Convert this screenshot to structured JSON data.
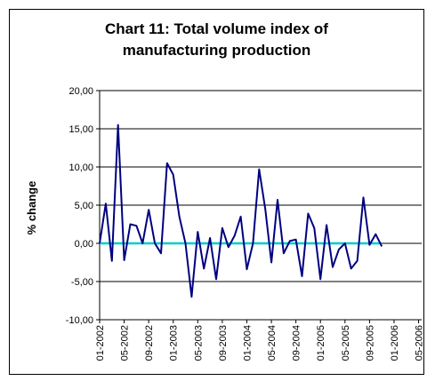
{
  "chart_data": {
    "type": "line",
    "title": "Chart 11: Total volume index of\nmanufacturing production",
    "xlabel": "",
    "ylabel": "% change",
    "ylim": [
      -10,
      20
    ],
    "y_ticks": [
      "20,00",
      "15,00",
      "10,00",
      "5,00",
      "0,00",
      "-5,00",
      "-10,00"
    ],
    "y_tick_values": [
      20,
      15,
      10,
      5,
      0,
      -5,
      -10
    ],
    "x_ticks": [
      "01-2002",
      "05-2002",
      "09-2002",
      "01-2003",
      "05-2003",
      "09-2003",
      "01-2004",
      "05-2004",
      "09-2004",
      "01-2005",
      "05-2005",
      "09-2005",
      "01-2006",
      "05-2006"
    ],
    "grid": "horizontal",
    "legend": "none",
    "series": [
      {
        "color": "#000080",
        "x": [
          "01-2002",
          "02-2002",
          "03-2002",
          "04-2002",
          "05-2002",
          "06-2002",
          "07-2002",
          "08-2002",
          "09-2002",
          "10-2002",
          "11-2002",
          "12-2002",
          "01-2003",
          "02-2003",
          "03-2003",
          "04-2003",
          "05-2003",
          "06-2003",
          "07-2003",
          "08-2003",
          "09-2003",
          "10-2003",
          "11-2003",
          "12-2003",
          "01-2004",
          "02-2004",
          "03-2004",
          "04-2004",
          "05-2004",
          "06-2004",
          "07-2004",
          "08-2004",
          "09-2004",
          "10-2004",
          "11-2004",
          "12-2004",
          "01-2005",
          "02-2005",
          "03-2005",
          "04-2005",
          "05-2005",
          "06-2005",
          "07-2005",
          "08-2005",
          "09-2005",
          "10-2005",
          "11-2005",
          "12-2005"
        ],
        "values": [
          0.0,
          5.2,
          -2.3,
          15.5,
          -2.2,
          2.5,
          2.3,
          0.0,
          4.4,
          0.0,
          -1.3,
          10.5,
          9.0,
          3.5,
          0.0,
          -7.0,
          1.5,
          -3.3,
          0.7,
          -4.7,
          2.0,
          -0.5,
          1.0,
          3.5,
          -3.4,
          0.0,
          9.7,
          4.5,
          -2.5,
          5.7,
          -1.3,
          0.3,
          0.5,
          -4.3,
          3.9,
          2.0,
          -4.7,
          2.4,
          -3.1,
          -0.8,
          0.0,
          -3.3,
          -2.3,
          6.0,
          -0.2,
          1.2,
          -0.4,
          null
        ]
      },
      {
        "color": "#00cccc",
        "values_constant": 0
      }
    ]
  }
}
